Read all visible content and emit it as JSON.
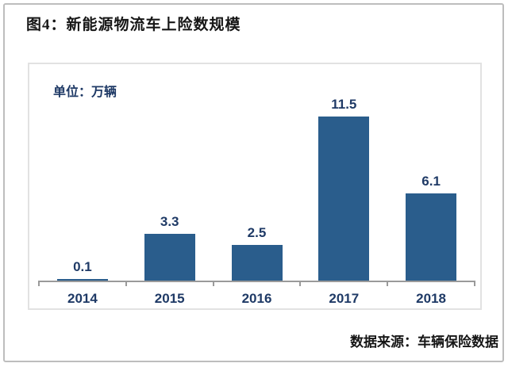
{
  "figure": {
    "title": "图4：新能源物流车上险数规模",
    "source": "数据来源：车辆保险数据"
  },
  "chart_data": {
    "type": "bar",
    "title": "新能源物流车上险数规模",
    "unit_label": "单位：万辆",
    "categories": [
      "2014",
      "2015",
      "2016",
      "2017",
      "2018"
    ],
    "values": [
      0.1,
      3.3,
      2.5,
      11.5,
      6.1
    ],
    "xlabel": "",
    "ylabel": "万辆",
    "ylim": [
      0,
      15
    ],
    "grid": false,
    "legend": "none",
    "bar_color": "#2a5d8c",
    "label_color": "#1f3a66",
    "axis_color": "#9a9a9a"
  }
}
